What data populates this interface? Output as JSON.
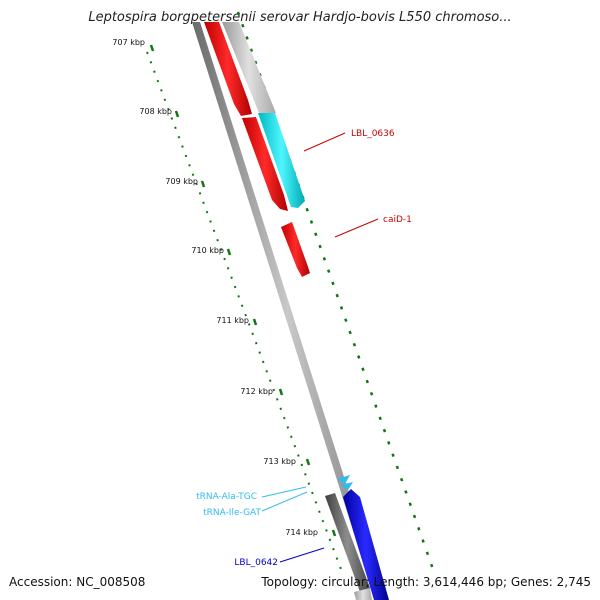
{
  "title": "Leptospira borgpetersenii serovar Hardjo-bovis L550 chromoso...",
  "footer": {
    "accession": "Accession: NC_008508",
    "summary": "Topology: circular; Length: 3,614,446 bp; Genes: 2,745"
  },
  "scale": {
    "labels": [
      "707 kbp",
      "708 kbp",
      "709 kbp",
      "710 kbp",
      "711 kbp",
      "712 kbp",
      "713 kbp",
      "714 kbp"
    ]
  },
  "genes": [
    {
      "name": "LBL_0636",
      "color": "#cc0000"
    },
    {
      "name": "caiD-1",
      "color": "#cc0000"
    },
    {
      "name": "tRNA-Ala-TGC",
      "color": "#33bbee"
    },
    {
      "name": "tRNA-Ile-GAT",
      "color": "#33bbee"
    },
    {
      "name": "LBL_0642",
      "color": "#0000cc"
    }
  ],
  "colors": {
    "backbone": "#8a8a8a",
    "forward_cds": "#ff0000",
    "reverse_cds": "#bbbbbb",
    "cyan_cds": "#00e5ee",
    "blue_cds": "#0000ff",
    "trna": "#33bbee",
    "tick": "#117711"
  }
}
